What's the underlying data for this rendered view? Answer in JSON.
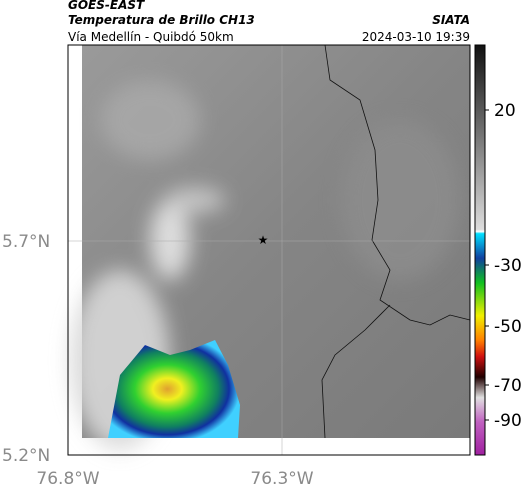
{
  "header": {
    "source": "GOES-EAST",
    "title": "Temperatura de Brillo CH13",
    "agency": "SIATA",
    "subtitle": "Vía Medellín - Quibdó 50km",
    "datetime": "2024-03-10 19:39"
  },
  "map": {
    "lat_labels": [
      "5.7°N",
      "5.2°N"
    ],
    "lon_labels": [
      "76.8°W",
      "76.3°W"
    ]
  },
  "colorbar": {
    "tick_labels": [
      "20",
      "-30",
      "-50",
      "-70",
      "-90"
    ]
  }
}
